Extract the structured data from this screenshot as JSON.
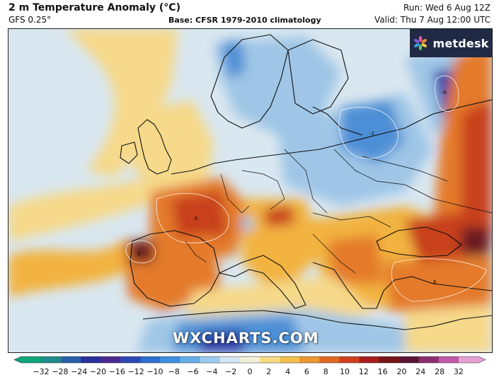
{
  "header": {
    "title": "2 m Temperature Anomaly (°C)",
    "subtitle": "GFS 0.25°",
    "base": "Base: CFSR 1979-2010 climatology",
    "run": "Run: Wed 6 Aug 12Z",
    "valid": "Valid: Thu 7 Aug 12:00 UTC"
  },
  "brand": {
    "label": "metdesk",
    "icon": "metdesk-flower-logo"
  },
  "watermark": "WXCHARTS.COM",
  "colorbar": {
    "ticks": [
      "−32",
      "−28",
      "−24",
      "−20",
      "−16",
      "−12",
      "−10",
      "−8",
      "−6",
      "−4",
      "−2",
      "0",
      "2",
      "4",
      "6",
      "8",
      "10",
      "12",
      "16",
      "20",
      "24",
      "28",
      "32"
    ],
    "colors": [
      "#10a47a",
      "#1f8a8a",
      "#2a5fa8",
      "#2a2f9a",
      "#4b2a8f",
      "#2d48b5",
      "#2d6fd0",
      "#3f8ee0",
      "#66aee8",
      "#9ccbed",
      "#d4e6f3",
      "#f2f0d8",
      "#f7dc86",
      "#f3c04a",
      "#ec9630",
      "#e06a22",
      "#cf3f1e",
      "#a61d1d",
      "#781518",
      "#5a1533",
      "#8a2f6e",
      "#c25aa8",
      "#e7a0d3"
    ]
  },
  "map": {
    "palette": {
      "sea_cool": "#d9e7f0",
      "neutral": "#f1efe2",
      "warm_light": "#f6d98a",
      "warm": "#f2b340",
      "hot": "#e47a2a",
      "very_hot": "#c8401e",
      "extreme": "#6a1a22",
      "cool": "#9fc6e6",
      "cold": "#4d8fd6",
      "very_cold": "#2a3ea8"
    }
  }
}
